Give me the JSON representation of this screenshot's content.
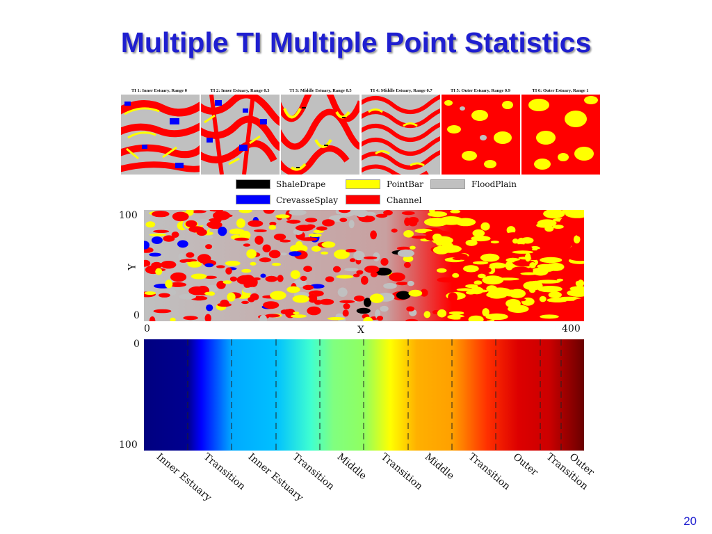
{
  "title": "Multiple TI Multiple Point Statistics",
  "page_number": "20",
  "training_images": [
    {
      "label": "TI 1: Inner Estuary, Range 0"
    },
    {
      "label": "TI 2: Inner Estuary, Range 0.3"
    },
    {
      "label": "TI 3: Middle Estuary, Range 0.5"
    },
    {
      "label": "TI 4: Middle Estuary, Range 0.7"
    },
    {
      "label": "TI 5: Outer Estuary, Range 0.9"
    },
    {
      "label": "TI 6: Outer Estuary, Range 1"
    }
  ],
  "legend": [
    {
      "label": "ShaleDrape",
      "color": "#000000"
    },
    {
      "label": "PointBar",
      "color": "#ffff00"
    },
    {
      "label": "FloodPlain",
      "color": "#c0c0c0"
    },
    {
      "label": "CrevasseSplay",
      "color": "#0000ff"
    },
    {
      "label": "Channel",
      "color": "#ff0000"
    }
  ],
  "simulation": {
    "y_label": "Y",
    "x_label": "X",
    "y_max": "100",
    "y_min": "0",
    "x_min": "0",
    "x_max": "400"
  },
  "gradient": {
    "top_label": "0",
    "bottom_label": "100",
    "zones": [
      "Inner Estuary",
      "Transition",
      "Inner Estuary",
      "Transition",
      "Middle",
      "Transition",
      "Middle",
      "Transition",
      "Outer",
      "Transition",
      "Outer"
    ]
  }
}
